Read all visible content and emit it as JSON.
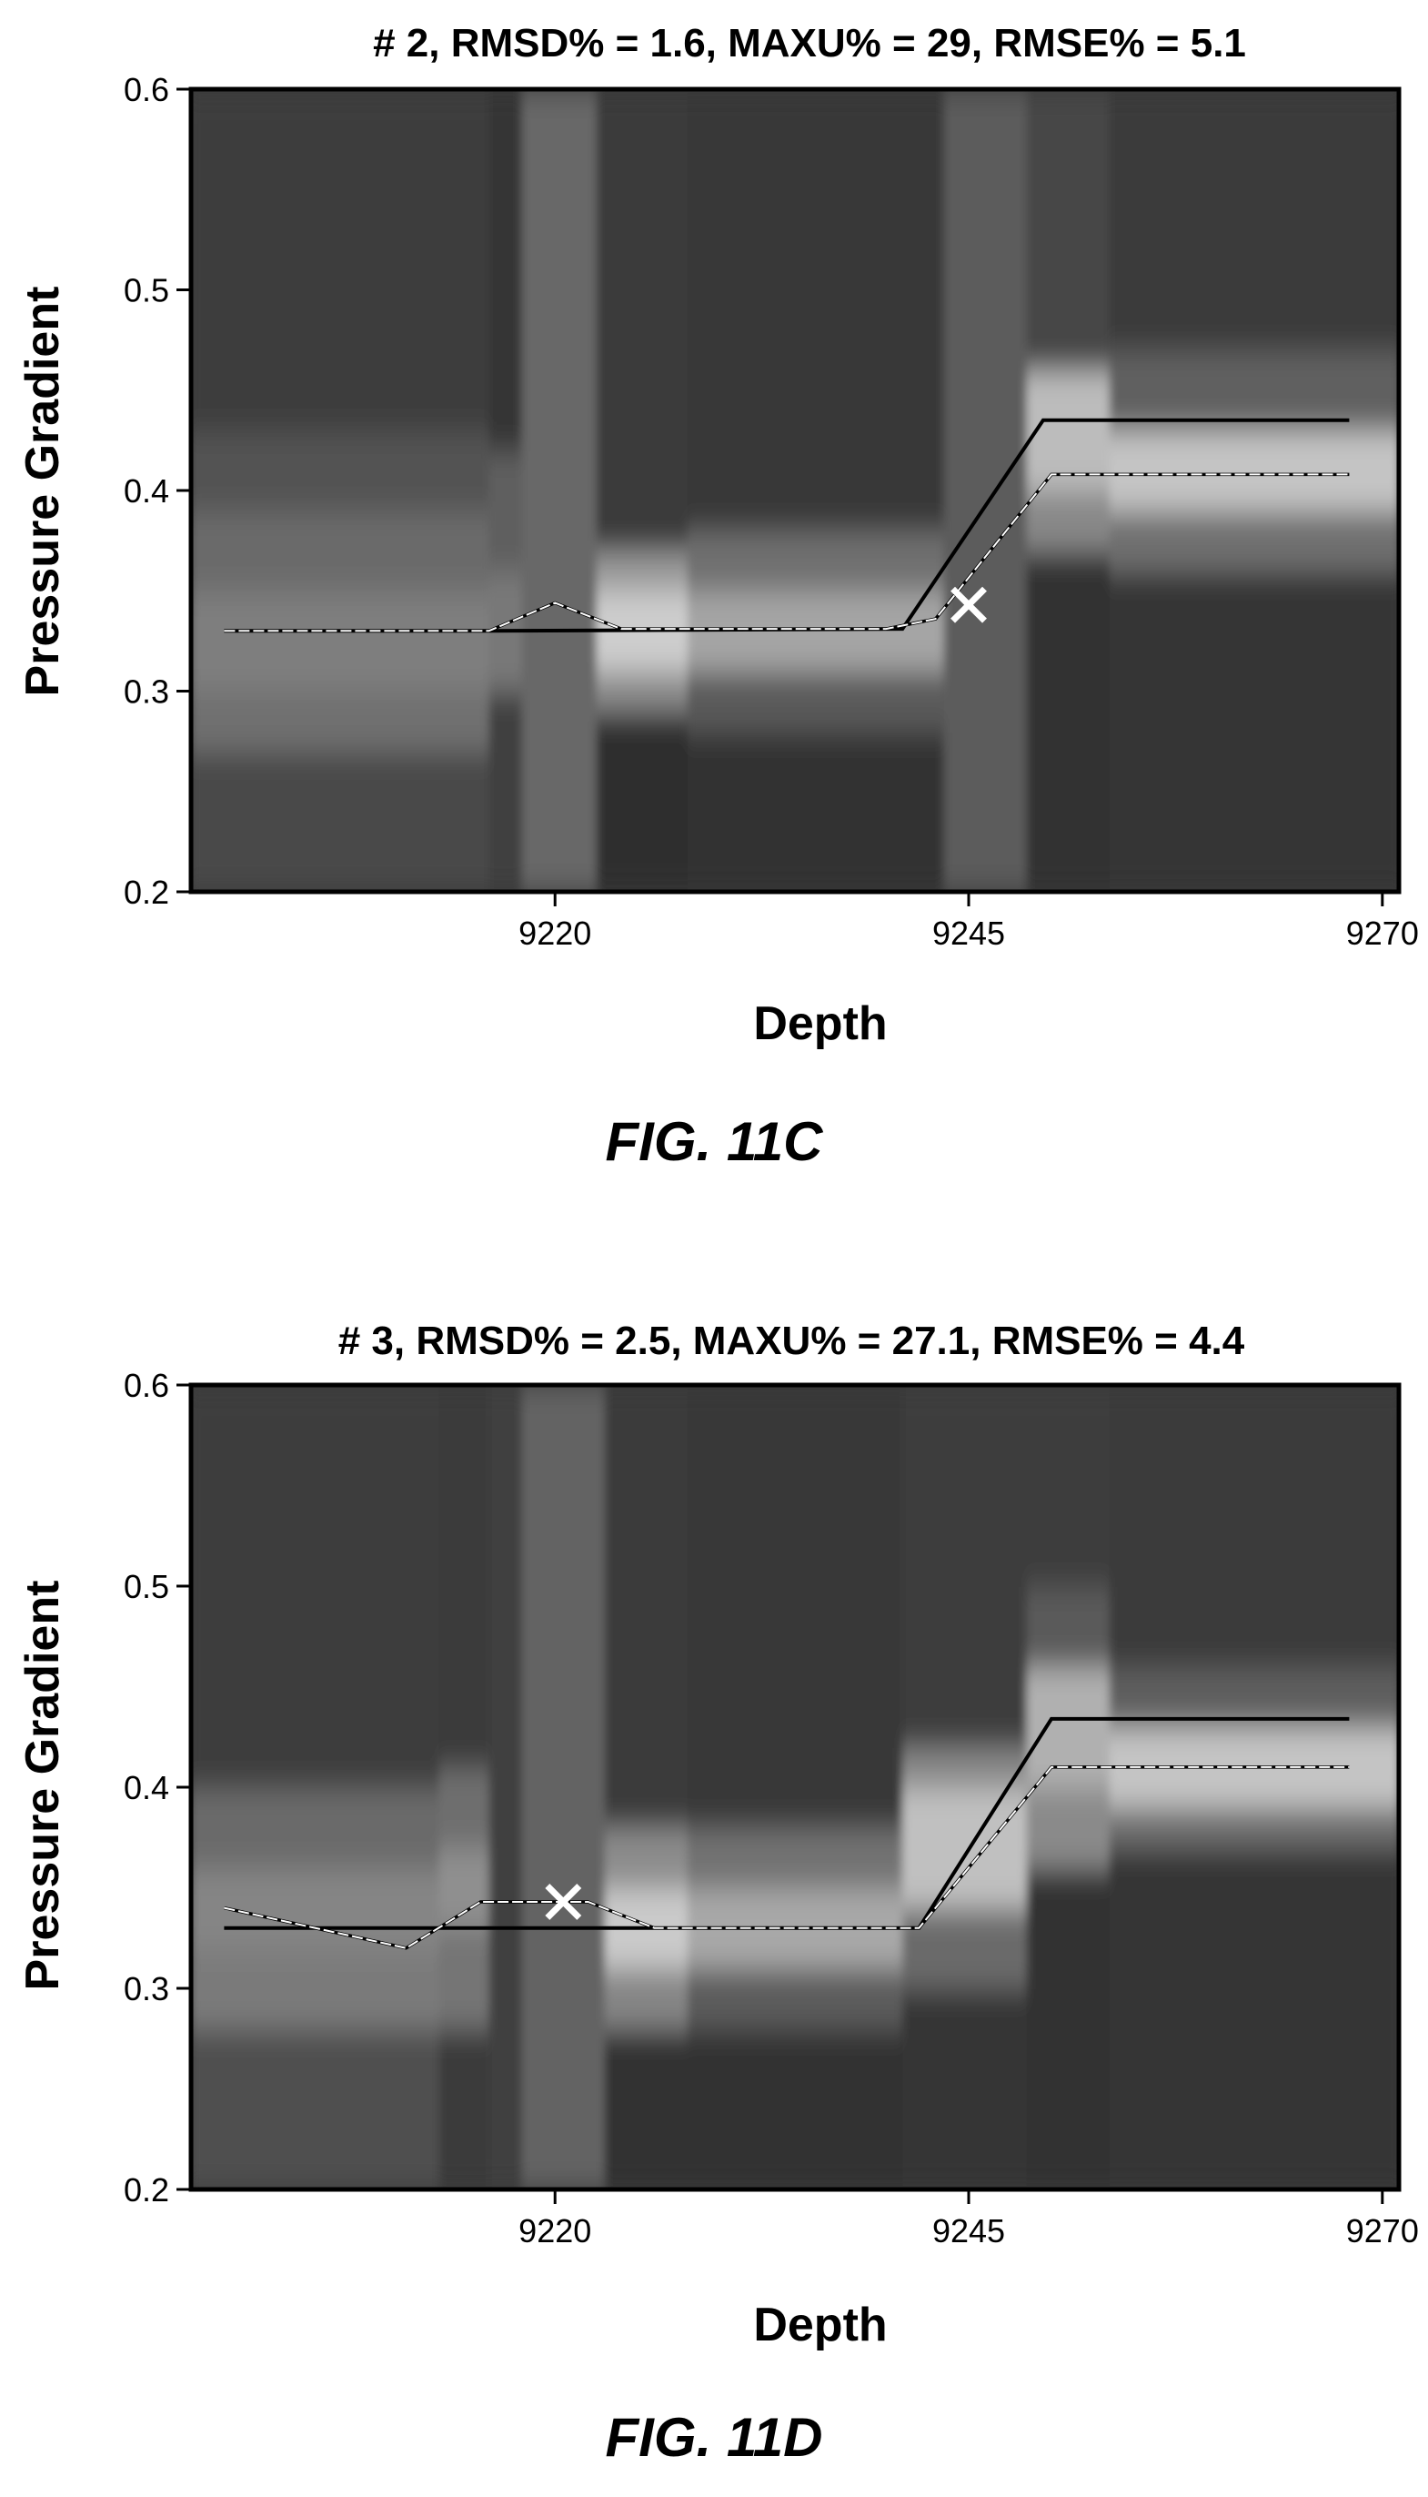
{
  "chart_data": [
    {
      "type": "line",
      "title": "# 2, RMSD% = 1.6, MAXU% = 29, RMSE% = 5.1",
      "xlabel": "Depth",
      "ylabel": "Pressure Gradient",
      "caption": "FIG. 11C",
      "xlim": [
        9198,
        9271
      ],
      "ylim": [
        0.2,
        0.6
      ],
      "xticks": [
        9220,
        9245,
        9270
      ],
      "xtick_labels": [
        "9220",
        "9245",
        "9270"
      ],
      "yticks": [
        0.2,
        0.3,
        0.4,
        0.5,
        0.6
      ],
      "ytick_labels": [
        "0.2",
        "0.3",
        "0.4",
        "0.5",
        "0.6"
      ],
      "grid": false,
      "series": [
        {
          "style": "solid-black",
          "x": [
            9200,
            9216,
            9241,
            9249.5,
            9268
          ],
          "y": [
            0.33,
            0.33,
            0.331,
            0.435,
            0.435
          ]
        },
        {
          "style": "dashed-white",
          "x": [
            9200,
            9216,
            9220,
            9224,
            9240,
            9243,
            9250,
            9268
          ],
          "y": [
            0.33,
            0.33,
            0.344,
            0.331,
            0.331,
            0.336,
            0.408,
            0.408
          ]
        }
      ],
      "marker": {
        "symbol": "x",
        "x": 9245,
        "y": 0.343
      },
      "heatmap_columns": [
        {
          "x0": 9198,
          "x1": 9216,
          "cells": [
            [
              0.2,
              0.27,
              "#4a4a4a"
            ],
            [
              0.27,
              0.3,
              "#707070"
            ],
            [
              0.3,
              0.35,
              "#7e7e7e"
            ],
            [
              0.35,
              0.39,
              "#6a6a6a"
            ],
            [
              0.39,
              0.43,
              "#525252"
            ],
            [
              0.43,
              0.6,
              "#3c3c3c"
            ]
          ]
        },
        {
          "x0": 9216,
          "x1": 9218,
          "cells": [
            [
              0.2,
              0.3,
              "#3f3f3f"
            ],
            [
              0.3,
              0.36,
              "#787878"
            ],
            [
              0.36,
              0.42,
              "#5e5e5e"
            ],
            [
              0.42,
              0.6,
              "#363636"
            ]
          ]
        },
        {
          "x0": 9218,
          "x1": 9222.5,
          "cells": [
            [
              0.2,
              0.6,
              "#676767"
            ]
          ]
        },
        {
          "x0": 9222.5,
          "x1": 9228,
          "cells": [
            [
              0.2,
              0.29,
              "#2e2e2e"
            ],
            [
              0.29,
              0.31,
              "#8a8a8a"
            ],
            [
              0.31,
              0.35,
              "#cdcdcd"
            ],
            [
              0.35,
              0.37,
              "#9a9a9a"
            ],
            [
              0.37,
              0.6,
              "#3a3a3a"
            ]
          ]
        },
        {
          "x0": 9228,
          "x1": 9243.5,
          "cells": [
            [
              0.2,
              0.28,
              "#303030"
            ],
            [
              0.28,
              0.31,
              "#5a5a5a"
            ],
            [
              0.31,
              0.35,
              "#a5a5a5"
            ],
            [
              0.35,
              0.38,
              "#707070"
            ],
            [
              0.38,
              0.6,
              "#383838"
            ]
          ]
        },
        {
          "x0": 9243.5,
          "x1": 9248.5,
          "cells": [
            [
              0.2,
              0.6,
              "#5c5c5c"
            ]
          ]
        },
        {
          "x0": 9248.5,
          "x1": 9253.5,
          "cells": [
            [
              0.2,
              0.37,
              "#333333"
            ],
            [
              0.37,
              0.4,
              "#888888"
            ],
            [
              0.4,
              0.46,
              "#bcbcbc"
            ],
            [
              0.46,
              0.6,
              "#474747"
            ]
          ]
        },
        {
          "x0": 9253.5,
          "x1": 9271,
          "cells": [
            [
              0.2,
              0.36,
              "#353535"
            ],
            [
              0.36,
              0.39,
              "#707070"
            ],
            [
              0.39,
              0.43,
              "#c4c4c4"
            ],
            [
              0.43,
              0.47,
              "#606060"
            ],
            [
              0.47,
              0.6,
              "#3a3a3a"
            ]
          ]
        }
      ]
    },
    {
      "type": "line",
      "title": "# 3, RMSD% = 2.5, MAXU% = 27.1, RMSE% = 4.4",
      "xlabel": "Depth",
      "ylabel": "Pressure Gradient",
      "caption": "FIG. 11D",
      "xlim": [
        9198,
        9271
      ],
      "ylim": [
        0.2,
        0.6
      ],
      "xticks": [
        9220,
        9245,
        9270
      ],
      "xtick_labels": [
        "9220",
        "9245",
        "9270"
      ],
      "yticks": [
        0.2,
        0.3,
        0.4,
        0.5,
        0.6
      ],
      "ytick_labels": [
        "0.2",
        "0.3",
        "0.4",
        "0.5",
        "0.6"
      ],
      "grid": false,
      "series": [
        {
          "style": "solid-black",
          "x": [
            9200,
            9242,
            9250,
            9268
          ],
          "y": [
            0.33,
            0.33,
            0.434,
            0.434
          ]
        },
        {
          "style": "dashed-white",
          "x": [
            9200,
            9211,
            9215.5,
            9222,
            9226,
            9242,
            9250,
            9268
          ],
          "y": [
            0.34,
            0.32,
            0.343,
            0.343,
            0.33,
            0.33,
            0.41,
            0.41
          ]
        }
      ],
      "marker": {
        "symbol": "x",
        "x": 9220.5,
        "y": 0.343
      },
      "heatmap_columns": [
        {
          "x0": 9198,
          "x1": 9213,
          "cells": [
            [
              0.2,
              0.28,
              "#505050"
            ],
            [
              0.28,
              0.32,
              "#7a7a7a"
            ],
            [
              0.32,
              0.36,
              "#858585"
            ],
            [
              0.36,
              0.4,
              "#6a6a6a"
            ],
            [
              0.4,
              0.6,
              "#3c3c3c"
            ]
          ]
        },
        {
          "x0": 9213,
          "x1": 9216,
          "cells": [
            [
              0.2,
              0.28,
              "#3a3a3a"
            ],
            [
              0.28,
              0.33,
              "#757575"
            ],
            [
              0.33,
              0.37,
              "#8f8f8f"
            ],
            [
              0.37,
              0.41,
              "#6e6e6e"
            ],
            [
              0.41,
              0.6,
              "#3a3a3a"
            ]
          ]
        },
        {
          "x0": 9216,
          "x1": 9218,
          "cells": [
            [
              0.2,
              0.6,
              "#3f3f3f"
            ]
          ]
        },
        {
          "x0": 9218,
          "x1": 9223,
          "cells": [
            [
              0.2,
              0.6,
              "#646464"
            ]
          ]
        },
        {
          "x0": 9223,
          "x1": 9228,
          "cells": [
            [
              0.2,
              0.28,
              "#303030"
            ],
            [
              0.28,
              0.31,
              "#858585"
            ],
            [
              0.31,
              0.35,
              "#cacaca"
            ],
            [
              0.35,
              0.38,
              "#8c8c8c"
            ],
            [
              0.38,
              0.6,
              "#3a3a3a"
            ]
          ]
        },
        {
          "x0": 9228,
          "x1": 9241,
          "cells": [
            [
              0.2,
              0.28,
              "#303030"
            ],
            [
              0.28,
              0.31,
              "#5c5c5c"
            ],
            [
              0.31,
              0.35,
              "#a8a8a8"
            ],
            [
              0.35,
              0.38,
              "#727272"
            ],
            [
              0.38,
              0.6,
              "#383838"
            ]
          ]
        },
        {
          "x0": 9241,
          "x1": 9248.5,
          "cells": [
            [
              0.2,
              0.3,
              "#343434"
            ],
            [
              0.3,
              0.34,
              "#6a6a6a"
            ],
            [
              0.34,
              0.4,
              "#c0c0c0"
            ],
            [
              0.4,
              0.42,
              "#888888"
            ],
            [
              0.42,
              0.6,
              "#3c3c3c"
            ]
          ]
        },
        {
          "x0": 9248.5,
          "x1": 9253.5,
          "cells": [
            [
              0.2,
              0.36,
              "#333333"
            ],
            [
              0.36,
              0.4,
              "#8a8a8a"
            ],
            [
              0.4,
              0.46,
              "#b0b0b0"
            ],
            [
              0.46,
              0.5,
              "#5a5a5a"
            ],
            [
              0.5,
              0.6,
              "#3e3e3e"
            ]
          ]
        },
        {
          "x0": 9253.5,
          "x1": 9271,
          "cells": [
            [
              0.2,
              0.37,
              "#343434"
            ],
            [
              0.37,
              0.39,
              "#6e6e6e"
            ],
            [
              0.39,
              0.43,
              "#c4c4c4"
            ],
            [
              0.43,
              0.46,
              "#5e5e5e"
            ],
            [
              0.46,
              0.6,
              "#3a3a3a"
            ]
          ]
        }
      ]
    }
  ]
}
